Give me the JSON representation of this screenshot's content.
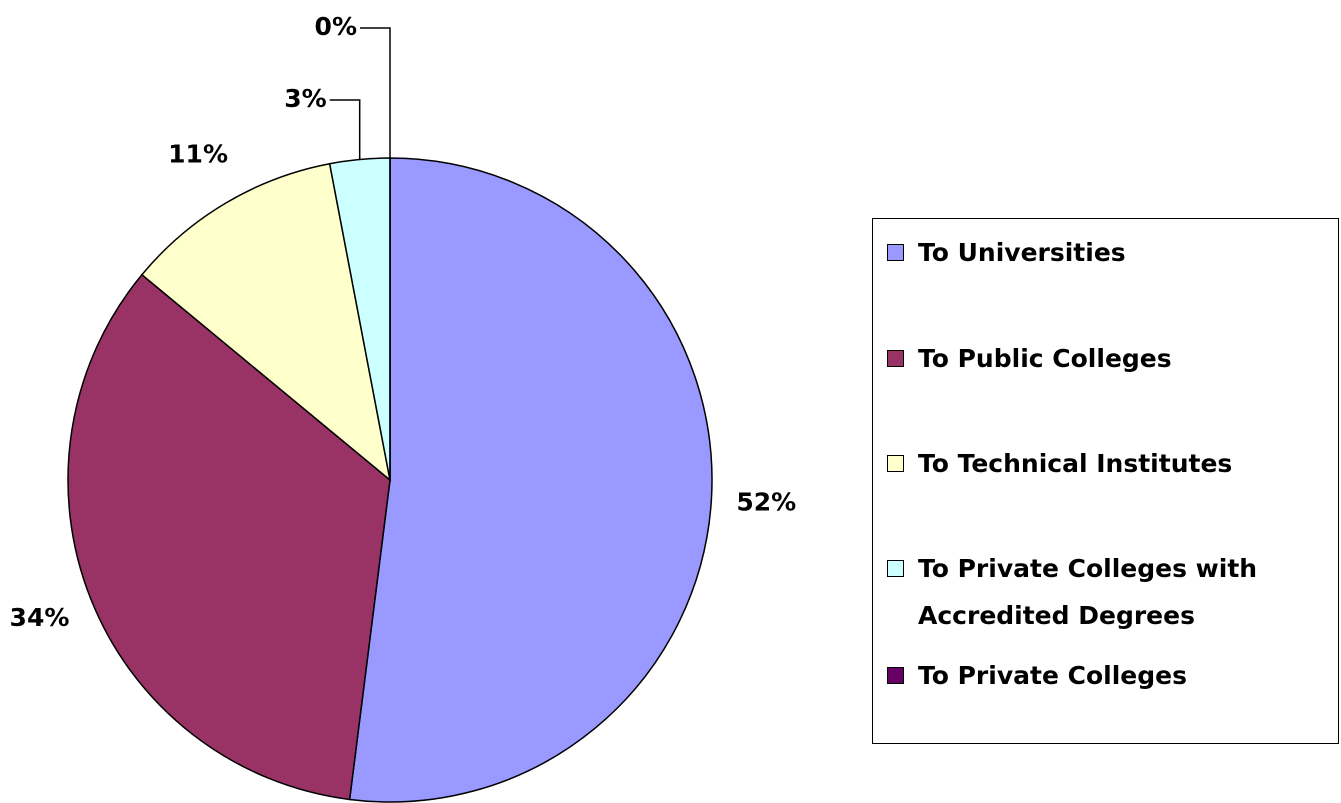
{
  "chart_data": {
    "type": "pie",
    "categories": [
      "To Universities",
      "To Public Colleges",
      "To Technical Institutes",
      "To Private Colleges with Accredited Degrees",
      "To Private Colleges"
    ],
    "values": [
      52,
      34,
      11,
      3,
      0
    ],
    "value_labels": [
      "52%",
      "34%",
      "11%",
      "3%",
      "0%"
    ],
    "colors": [
      "#9999ff",
      "#993366",
      "#ffffcc",
      "#ccffff",
      "#660066"
    ],
    "legend": "right"
  }
}
